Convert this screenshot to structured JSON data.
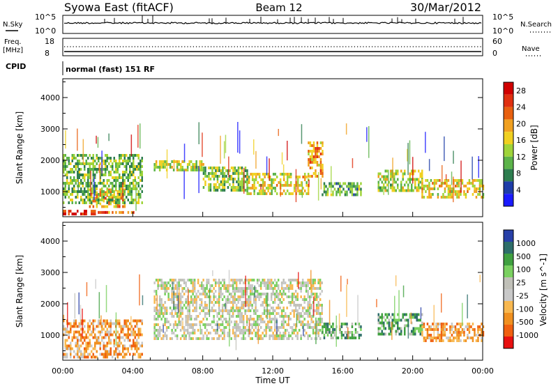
{
  "header": {
    "station": "Syowa East (fitACF)",
    "beam": "Beam 12",
    "date": "30/Mar/2012"
  },
  "noise_panel": {
    "left_label": "N.Sky",
    "right_label": "N.Search",
    "left_ticks": [
      "10^5",
      "10^0"
    ],
    "right_ticks": [
      "10^5",
      "10^0"
    ]
  },
  "freq_panel": {
    "left_label_1": "Freq.",
    "left_label_2": "[MHz]",
    "left_ticks": [
      "18",
      "8"
    ],
    "right_label": "Nave",
    "right_ticks": [
      "60",
      "0"
    ]
  },
  "cpid_panel": {
    "label": "CPID",
    "value": "normal (fast) 151 RF"
  },
  "colors": {
    "power": [
      "#1a1aff",
      "#1e3da8",
      "#2e7d4f",
      "#5cb34a",
      "#9fd43a",
      "#f0d020",
      "#f0a020",
      "#e86010",
      "#e03010",
      "#d00000"
    ],
    "velocity": [
      "#e81010",
      "#f06010",
      "#f09020",
      "#f8b850",
      "#c8c8c8",
      "#c0c0b8",
      "#7ad060",
      "#40a040",
      "#2e6e6a",
      "#2840a8"
    ]
  },
  "chart_data": [
    {
      "type": "heatmap",
      "title": "",
      "quantity": "Power",
      "ylabel": "Slant Range [km]",
      "ylim": [
        200,
        4600
      ],
      "yticks": [
        "1000",
        "2000",
        "3000",
        "4000"
      ],
      "colorbar_label": "Power [dB]",
      "colorbar_ticks": [
        "4",
        "8",
        "12",
        "16",
        "20",
        "24",
        "28"
      ],
      "colorbar_range": [
        0,
        30
      ],
      "regions": [
        {
          "t": [
            0.0,
            1.8
          ],
          "r": [
            300,
            420
          ],
          "v": 27
        },
        {
          "t": [
            1.8,
            4.0
          ],
          "r": [
            300,
            380
          ],
          "v": 24
        },
        {
          "t": [
            1.5,
            3.5
          ],
          "r": [
            550,
            1100
          ],
          "v": 20
        },
        {
          "t": [
            0.0,
            4.5
          ],
          "r": [
            600,
            2200
          ],
          "v": 11
        },
        {
          "t": [
            5.2,
            8.0
          ],
          "r": [
            1700,
            2000
          ],
          "v": 14
        },
        {
          "t": [
            8.0,
            10.5
          ],
          "r": [
            1000,
            1800
          ],
          "v": 12
        },
        {
          "t": [
            10.5,
            14.0
          ],
          "r": [
            900,
            1600
          ],
          "v": 16
        },
        {
          "t": [
            14.0,
            14.8
          ],
          "r": [
            1500,
            2600
          ],
          "v": 20
        },
        {
          "t": [
            14.8,
            17.0
          ],
          "r": [
            900,
            1300
          ],
          "v": 10
        },
        {
          "t": [
            18.0,
            20.5
          ],
          "r": [
            1000,
            1700
          ],
          "v": 14
        },
        {
          "t": [
            20.5,
            24.0
          ],
          "r": [
            800,
            1400
          ],
          "v": 17
        }
      ]
    },
    {
      "type": "heatmap",
      "title": "",
      "quantity": "Velocity",
      "ylabel": "Slant Range [km]",
      "xlabel": "Time UT",
      "xticks": [
        "00:00",
        "04:00",
        "08:00",
        "12:00",
        "16:00",
        "20:00",
        "00:00"
      ],
      "xlim": [
        0,
        24
      ],
      "ylim": [
        200,
        4600
      ],
      "yticks": [
        "1000",
        "2000",
        "3000",
        "4000"
      ],
      "colorbar_label": "Velocity [m s^-1]",
      "colorbar_ticks": [
        "1000",
        "500",
        "100",
        "25",
        "-25",
        "-100",
        "-500",
        "-1000"
      ],
      "regions": [
        {
          "t": [
            0.0,
            4.5
          ],
          "r": [
            300,
            1500
          ],
          "v": -300
        },
        {
          "t": [
            5.2,
            14.8
          ],
          "r": [
            900,
            2800
          ],
          "v": 0
        },
        {
          "t": [
            14.8,
            17.0
          ],
          "r": [
            900,
            1400
          ],
          "v": 200
        },
        {
          "t": [
            18.0,
            20.5
          ],
          "r": [
            1000,
            1700
          ],
          "v": 150
        },
        {
          "t": [
            20.5,
            24.0
          ],
          "r": [
            800,
            1400
          ],
          "v": -250
        }
      ]
    }
  ]
}
